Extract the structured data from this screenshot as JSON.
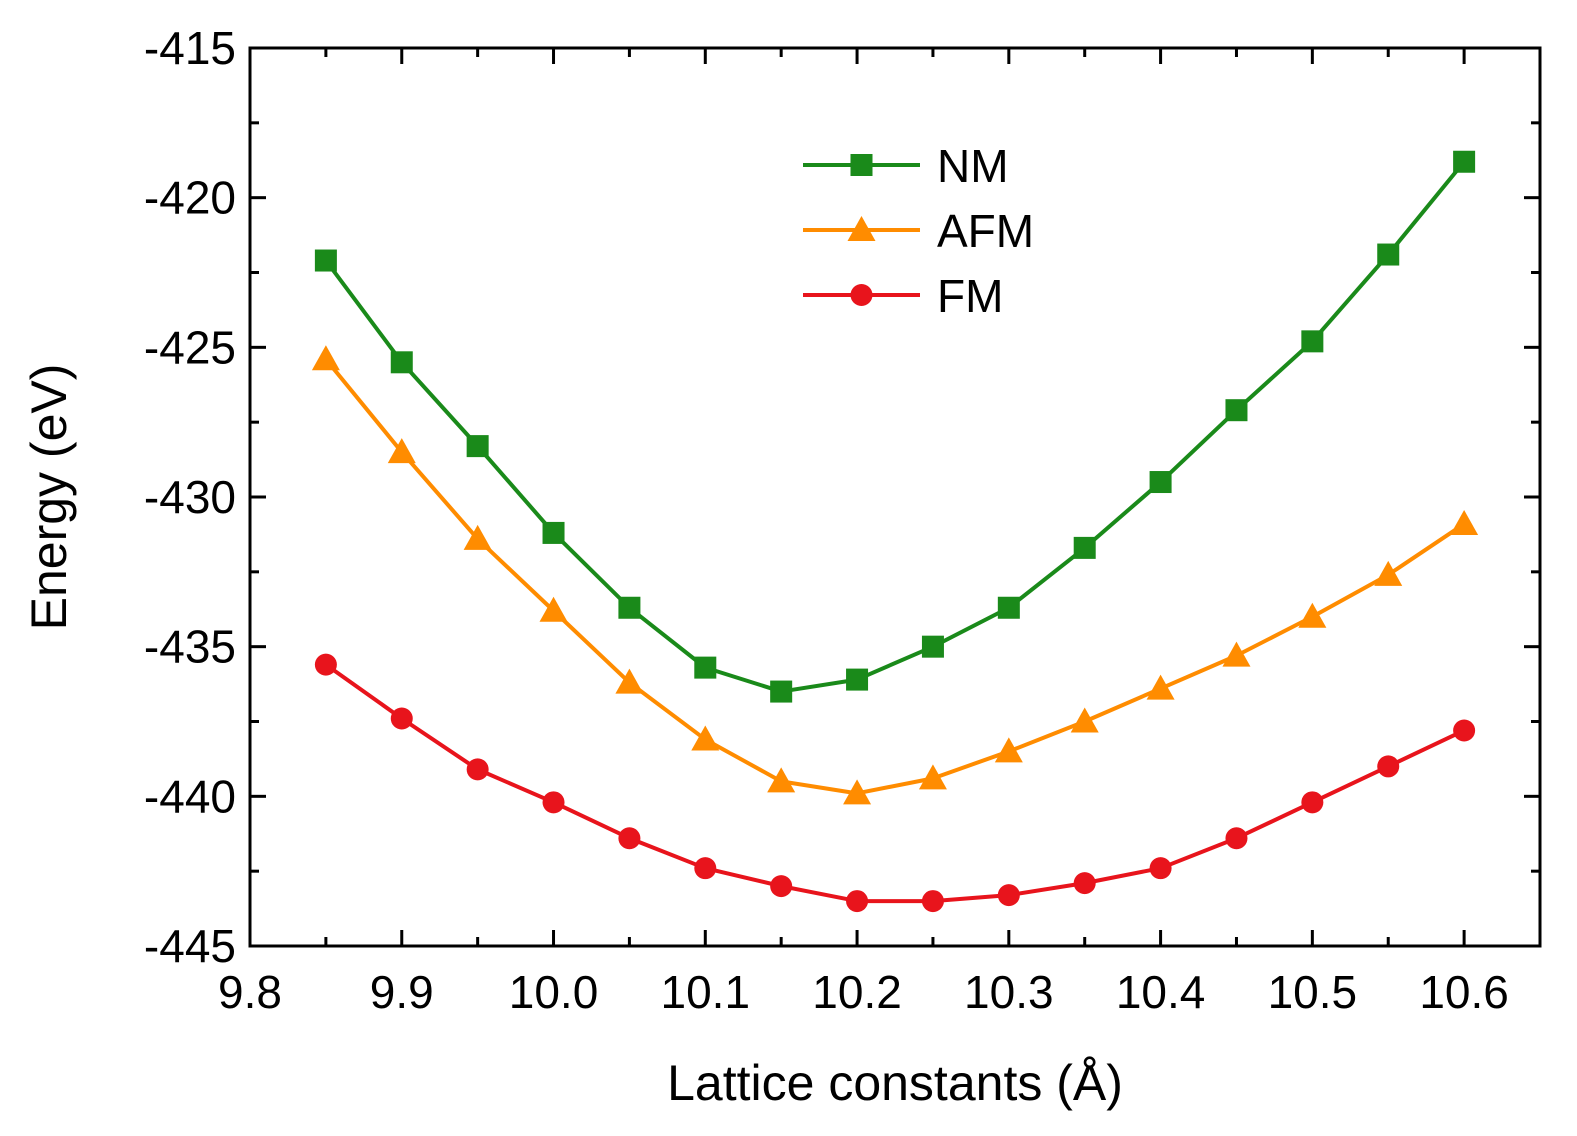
{
  "chart_data": {
    "type": "line",
    "title": "",
    "xlabel": "Lattice constants (Å)",
    "ylabel": "Energy (eV)",
    "xlim": [
      9.8,
      10.65
    ],
    "ylim": [
      -445,
      -415
    ],
    "xticks": [
      9.8,
      9.9,
      10.0,
      10.1,
      10.2,
      10.3,
      10.4,
      10.5,
      10.6
    ],
    "xtick_labels": [
      "9.8",
      "9.9",
      "10.0",
      "10.1",
      "10.2",
      "10.3",
      "10.4",
      "10.5",
      "10.6"
    ],
    "yticks": [
      -415,
      -420,
      -425,
      -430,
      -435,
      -440,
      -445
    ],
    "ytick_labels": [
      "-415",
      "-420",
      "-425",
      "-430",
      "-435",
      "-440",
      "-445"
    ],
    "legend_position": "top-center",
    "grid": false,
    "x": [
      9.85,
      9.9,
      9.95,
      10.0,
      10.05,
      10.1,
      10.15,
      10.2,
      10.25,
      10.3,
      10.35,
      10.4,
      10.45,
      10.5,
      10.55,
      10.6
    ],
    "series": [
      {
        "name": "NM",
        "color": "#1a8a1a",
        "marker": "square",
        "values": [
          -422.1,
          -425.5,
          -428.3,
          -431.2,
          -433.7,
          -435.7,
          -436.5,
          -436.1,
          -435.0,
          -433.7,
          -431.7,
          -429.5,
          -427.1,
          -424.8,
          -421.9,
          -418.8
        ]
      },
      {
        "name": "AFM",
        "color": "#ff8c00",
        "marker": "triangle",
        "values": [
          -425.4,
          -428.5,
          -431.4,
          -433.8,
          -436.2,
          -438.1,
          -439.5,
          -439.9,
          -439.4,
          -438.5,
          -437.5,
          -436.4,
          -435.3,
          -434.0,
          -432.6,
          -430.9
        ]
      },
      {
        "name": "FM",
        "color": "#e8141c",
        "marker": "circle",
        "values": [
          -435.6,
          -437.4,
          -439.1,
          -440.2,
          -441.4,
          -442.4,
          -443.0,
          -443.5,
          -443.5,
          -443.3,
          -442.9,
          -442.4,
          -441.4,
          -440.2,
          -439.0,
          -437.8
        ]
      }
    ]
  }
}
